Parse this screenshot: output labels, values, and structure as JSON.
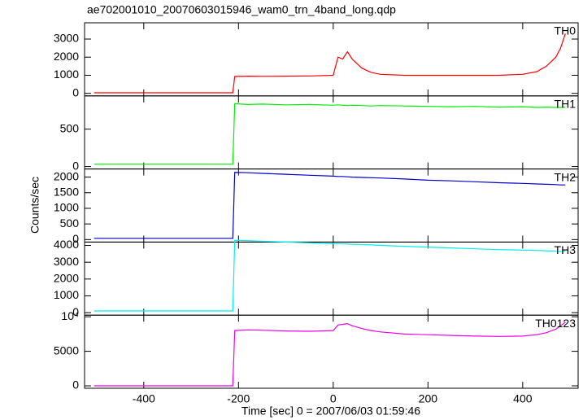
{
  "chart_data": {
    "type": "line",
    "title": "ae702001010_20070603015946_wam0_trn_4band_long.qdp",
    "x_label": "Time [sec] 0 = 2007/06/03 01:59:46",
    "y_label": "Counts/sec",
    "xlim": [
      -525,
      517
    ],
    "xticks": [
      -400,
      -200,
      0,
      200,
      400
    ],
    "x": [
      -505,
      -450,
      -400,
      -350,
      -300,
      -250,
      -212,
      -208,
      -180,
      -150,
      -100,
      -50,
      0,
      10,
      20,
      30,
      40,
      60,
      80,
      100,
      150,
      200,
      250,
      300,
      350,
      400,
      430,
      450,
      470,
      480,
      490
    ],
    "panels": [
      {
        "name": "TH0",
        "color": "#ff0000",
        "ylim": [
          -140,
          3900
        ],
        "yticks": [
          0,
          1000,
          2000,
          3000
        ],
        "values": [
          30,
          30,
          30,
          30,
          30,
          30,
          30,
          930,
          950,
          940,
          950,
          960,
          1000,
          2000,
          1900,
          2300,
          1900,
          1400,
          1150,
          1050,
          1000,
          1000,
          1000,
          1000,
          1000,
          1050,
          1200,
          1500,
          2000,
          2500,
          3300
        ]
      },
      {
        "name": "TH1",
        "color": "#00ee00",
        "ylim": [
          -33,
          945
        ],
        "yticks": [
          0,
          500
        ],
        "values": [
          30,
          30,
          30,
          30,
          30,
          30,
          30,
          840,
          830,
          835,
          825,
          830,
          820,
          825,
          820,
          815,
          820,
          815,
          810,
          815,
          810,
          805,
          800,
          805,
          795,
          800,
          790,
          795,
          790,
          790,
          795
        ]
      },
      {
        "name": "TH2",
        "color": "#0000cc",
        "ylim": [
          -80,
          2260
        ],
        "yticks": [
          0,
          500,
          1000,
          1500,
          2000
        ],
        "values": [
          40,
          40,
          40,
          40,
          40,
          40,
          40,
          2150,
          2140,
          2120,
          2090,
          2060,
          2030,
          2020,
          2020,
          2010,
          2000,
          1990,
          1980,
          1970,
          1940,
          1900,
          1880,
          1850,
          1820,
          1800,
          1780,
          1770,
          1760,
          1750,
          1750
        ]
      },
      {
        "name": "TH3",
        "color": "#00eeee",
        "ylim": [
          -150,
          4200
        ],
        "yticks": [
          0,
          1000,
          2000,
          3000,
          4000
        ],
        "values": [
          100,
          100,
          100,
          100,
          100,
          100,
          100,
          4300,
          4280,
          4250,
          4200,
          4150,
          4100,
          4100,
          4090,
          4080,
          4070,
          4050,
          4030,
          4000,
          3950,
          3900,
          3850,
          3800,
          3750,
          3720,
          3700,
          3680,
          3660,
          3650,
          3650
        ]
      },
      {
        "name": "TH0123",
        "color": "#ee00ee",
        "ylim": [
          -350,
          10230
        ],
        "yticks": [
          0,
          5000,
          {
            "value": 10000,
            "label": "10⁴"
          }
        ],
        "values": [
          0,
          0,
          0,
          0,
          0,
          0,
          0,
          8000,
          8100,
          8050,
          7950,
          7900,
          8000,
          8800,
          8900,
          9000,
          8700,
          8300,
          8000,
          7800,
          7500,
          7400,
          7300,
          7200,
          7150,
          7200,
          7400,
          7700,
          8200,
          8700,
          9200
        ]
      }
    ]
  }
}
